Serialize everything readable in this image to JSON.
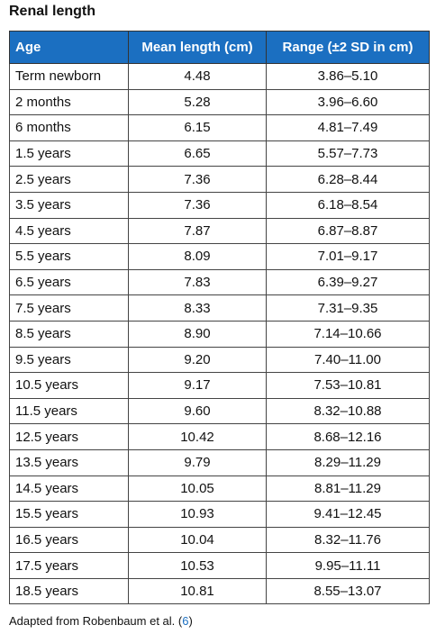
{
  "title": "Renal length",
  "table": {
    "header": [
      "Age",
      "Mean length (cm)",
      "Range (±2 SD in cm)"
    ],
    "rows": [
      [
        "Term newborn",
        "4.48",
        "3.86–5.10"
      ],
      [
        "2 months",
        "5.28",
        "3.96–6.60"
      ],
      [
        "6 months",
        "6.15",
        "4.81–7.49"
      ],
      [
        "1.5 years",
        "6.65",
        "5.57–7.73"
      ],
      [
        "2.5 years",
        "7.36",
        "6.28–8.44"
      ],
      [
        "3.5 years",
        "7.36",
        "6.18–8.54"
      ],
      [
        "4.5 years",
        "7.87",
        "6.87–8.87"
      ],
      [
        "5.5 years",
        "8.09",
        "7.01–9.17"
      ],
      [
        "6.5 years",
        "7.83",
        "6.39–9.27"
      ],
      [
        "7.5 years",
        "8.33",
        "7.31–9.35"
      ],
      [
        "8.5 years",
        "8.90",
        "7.14–10.66"
      ],
      [
        "9.5 years",
        "9.20",
        "7.40–11.00"
      ],
      [
        "10.5 years",
        "9.17",
        "7.53–10.81"
      ],
      [
        "11.5 years",
        "9.60",
        "8.32–10.88"
      ],
      [
        "12.5 years",
        "10.42",
        "8.68–12.16"
      ],
      [
        "13.5 years",
        "9.79",
        "8.29–11.29"
      ],
      [
        "14.5 years",
        "10.05",
        "8.81–11.29"
      ],
      [
        "15.5 years",
        "10.93",
        "9.41–12.45"
      ],
      [
        "16.5 years",
        "10.04",
        "8.32–11.76"
      ],
      [
        "17.5 years",
        "10.53",
        "9.95–11.11"
      ],
      [
        "18.5 years",
        "10.81",
        "8.55–13.07"
      ]
    ]
  },
  "footnote": {
    "prefix": "Adapted from Robenbaum et al. (",
    "ref": "6",
    "suffix": ")"
  }
}
